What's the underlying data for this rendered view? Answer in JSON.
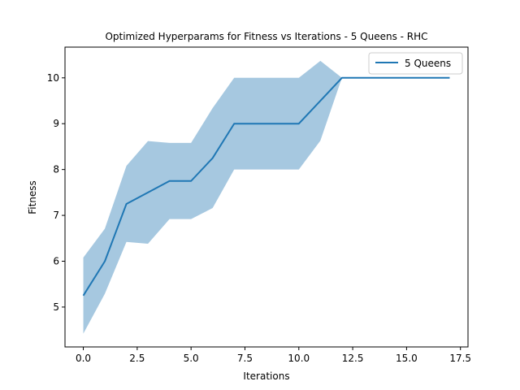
{
  "chart_data": {
    "type": "line",
    "title": "Optimized Hyperparams for Fitness vs Iterations - 5 Queens - RHC",
    "xlabel": "Iterations",
    "ylabel": "Fitness",
    "xlim": [
      -0.85,
      17.85
    ],
    "ylim": [
      4.13,
      10.67
    ],
    "xticks": [
      "0.0",
      "2.5",
      "5.0",
      "7.5",
      "10.0",
      "12.5",
      "15.0",
      "17.5"
    ],
    "xtick_values": [
      0,
      2.5,
      5,
      7.5,
      10,
      12.5,
      15,
      17.5
    ],
    "yticks": [
      "5",
      "6",
      "7",
      "8",
      "9",
      "10"
    ],
    "ytick_values": [
      5,
      6,
      7,
      8,
      9,
      10
    ],
    "grid": false,
    "legend_position": "top-right",
    "series": [
      {
        "name": "5 Queens",
        "color": "#1f77b4",
        "band_color": "#a6c8e0",
        "x": [
          0,
          1,
          2,
          3,
          4,
          5,
          6,
          7,
          8,
          9,
          10,
          11,
          12,
          13,
          14,
          15,
          16,
          17
        ],
        "values": [
          5.25,
          6.0,
          7.25,
          7.5,
          7.75,
          7.75,
          8.25,
          9.0,
          9.0,
          9.0,
          9.0,
          9.5,
          10.0,
          10.0,
          10.0,
          10.0,
          10.0,
          10.0
        ],
        "upper": [
          6.08,
          6.71,
          8.08,
          8.62,
          8.58,
          8.58,
          9.34,
          10.0,
          10.0,
          10.0,
          10.0,
          10.37,
          10.0,
          10.0,
          10.0,
          10.0,
          10.0,
          10.0
        ],
        "lower": [
          4.42,
          5.29,
          6.42,
          6.38,
          6.92,
          6.92,
          7.16,
          8.0,
          8.0,
          8.0,
          8.0,
          8.63,
          10.0,
          10.0,
          10.0,
          10.0,
          10.0,
          10.0
        ]
      }
    ]
  }
}
